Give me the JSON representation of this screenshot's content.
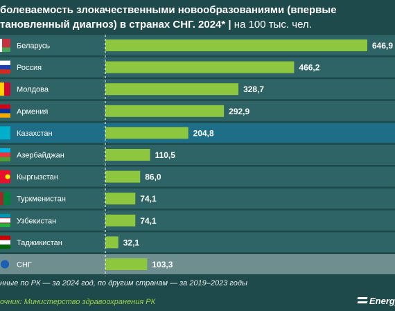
{
  "header": {
    "title_line1": "болеваемость злокачественными новообразованиями (впервые",
    "title_line2": "тановленный диагноз) в странах СНГ. 2024*",
    "separator": "|",
    "unit": "на 100 тыс. чел."
  },
  "chart_data": {
    "type": "bar",
    "orientation": "horizontal",
    "title": "болеваемость злокачественными новообразованиями (впервые тановленный диагноз) в странах СНГ. 2024*",
    "unit": "на 100 тыс. чел.",
    "categories": [
      "Беларусь",
      "Россия",
      "Молдова",
      "Армения",
      "Казахстан",
      "Азербайджан",
      "Кыргызстан",
      "Туркменистан",
      "Узбекистан",
      "Таджикистан",
      "СНГ"
    ],
    "values": [
      646.9,
      466.2,
      328.7,
      292.9,
      204.8,
      110.5,
      86.0,
      74.1,
      74.1,
      32.1,
      103.3
    ],
    "value_labels": [
      "646,9",
      "466,2",
      "328,7",
      "292,9",
      "204,8",
      "110,5",
      "86,0",
      "74,1",
      "74,1",
      "32,1",
      "103,3"
    ],
    "highlighted": [
      "Казахстан",
      "СНГ"
    ],
    "xlim": [
      0,
      646.9
    ],
    "grid": false,
    "legend": "none"
  },
  "colors": {
    "background": "#1f4a4b",
    "row_band": "#2f6466",
    "row_highlight_kz": "#1d6e86",
    "row_highlight_cis": "#6f8e8f",
    "bar": "#8dc63f",
    "axis_dash": "#ffffff"
  },
  "flags": [
    "by-flag-icon",
    "ru-flag-icon",
    "md-flag-icon",
    "am-flag-icon",
    "kz-flag-icon",
    "az-flag-icon",
    "kg-flag-icon",
    "tm-flag-icon",
    "uz-flag-icon",
    "tj-flag-icon",
    "cis-emblem-icon"
  ],
  "footer": {
    "footnote": "нные по РК — за 2024 год, по другим странам — за 2019–2023 годы",
    "source": "очник: Министерство здравоохранения РК",
    "logo": "Energy"
  }
}
